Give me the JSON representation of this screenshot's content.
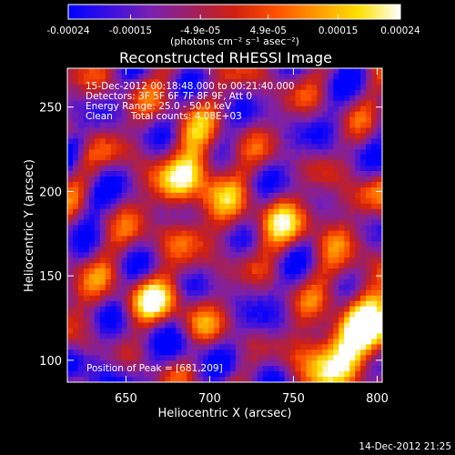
{
  "chart_data": {
    "type": "heatmap",
    "title": "Reconstructed RHESSI Image",
    "colorbar": {
      "ticks": [
        "-0.00024",
        "-0.00015",
        "-4.9e-05",
        "4.9e-05",
        "0.00015",
        "0.00024"
      ],
      "unit_label": "(photons cm⁻² s⁻¹ asec⁻²)",
      "range": [
        -0.00024,
        0.00024
      ],
      "colormap": [
        "#0000ff",
        "#3a10e0",
        "#7a20b0",
        "#a02060",
        "#d02010",
        "#ff5000",
        "#ff9a00",
        "#ffe000",
        "#ffffff"
      ]
    },
    "annotations": [
      "15-Dec-2012 00:18:48.000 to 00:21:40.000",
      "Detectors: 3F 5F 6F 7F 8F 9F, Att 0",
      "Energy Range: 25.0 - 50.0 keV",
      "Clean      Total counts: 4.08E+03"
    ],
    "peak_label": "Position of Peak = [681,209]",
    "xlabel": "Heliocentric X (arcsec)",
    "ylabel": "Heliocentric Y (arcsec)",
    "xlim": [
      615,
      803
    ],
    "ylim": [
      87,
      273
    ],
    "xticks": [
      650,
      700,
      750,
      800
    ],
    "yticks": [
      100,
      150,
      200,
      250
    ]
  },
  "timestamp": "14-Dec-2012 21:25"
}
